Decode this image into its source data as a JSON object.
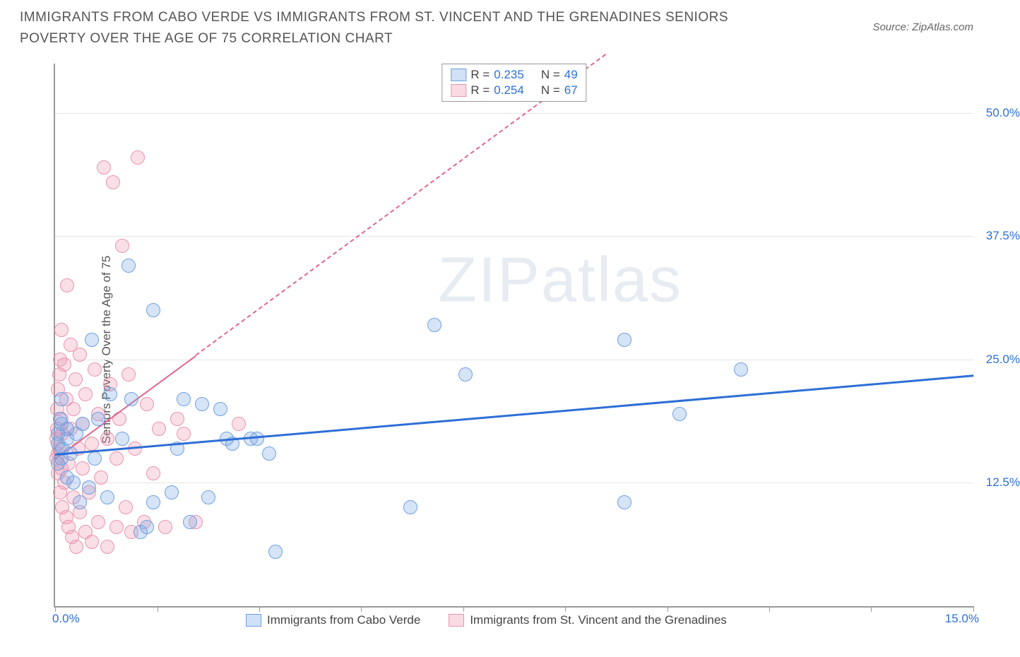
{
  "title": "IMMIGRANTS FROM CABO VERDE VS IMMIGRANTS FROM ST. VINCENT AND THE GRENADINES SENIORS POVERTY OVER THE AGE OF 75 CORRELATION CHART",
  "source": "Source: ZipAtlas.com",
  "ylabel": "Seniors Poverty Over the Age of 75",
  "watermark_a": "ZIP",
  "watermark_b": "atlas",
  "chart": {
    "type": "scatter",
    "background_color": "#ffffff",
    "grid_color": "#e5e5e5",
    "axis_color": "#999999",
    "tick_label_color": "#2e6fd6",
    "xlim": [
      0,
      15
    ],
    "ylim": [
      0,
      55
    ],
    "yticks": [
      12.5,
      25.0,
      37.5,
      50.0
    ],
    "ytick_labels": [
      "12.5%",
      "25.0%",
      "37.5%",
      "50.0%"
    ],
    "xticks": [
      0,
      1.67,
      3.33,
      5.0,
      6.67,
      8.33,
      10.0,
      11.67,
      13.33,
      15.0
    ],
    "x_left_label": "0.0%",
    "x_right_label": "15.0%",
    "legend_top": {
      "r_label": "R =",
      "n_label": "N =",
      "rows": [
        {
          "color_fill": "rgba(120,165,230,0.35)",
          "color_border": "#6fa0e0",
          "r": "0.235",
          "n": "49"
        },
        {
          "color_fill": "rgba(240,150,175,0.35)",
          "color_border": "#e895ad",
          "r": "0.254",
          "n": "67"
        }
      ]
    },
    "legend_bottom": [
      {
        "color_fill": "rgba(120,165,230,0.35)",
        "color_border": "#6fa0e0",
        "label": "Immigrants from Cabo Verde"
      },
      {
        "color_fill": "rgba(240,150,175,0.35)",
        "color_border": "#e895ad",
        "label": "Immigrants from St. Vincent and the Grenadines"
      }
    ],
    "series_blue": {
      "point_fill": "rgba(120,165,230,0.30)",
      "point_border": "#6fa0e0",
      "point_radius": 10,
      "trend_color": "#2e6fd6",
      "trend_width": 3,
      "trend_dash": "solid",
      "trend_start": {
        "x": 0.0,
        "y": 15.5
      },
      "trend_end": {
        "x": 15.0,
        "y": 23.5
      },
      "points": [
        {
          "x": 0.05,
          "y": 14.5
        },
        {
          "x": 0.05,
          "y": 16.5
        },
        {
          "x": 0.05,
          "y": 17.5
        },
        {
          "x": 0.08,
          "y": 19.0
        },
        {
          "x": 0.1,
          "y": 15.0
        },
        {
          "x": 0.1,
          "y": 18.5
        },
        {
          "x": 0.1,
          "y": 21.0
        },
        {
          "x": 0.12,
          "y": 16.0
        },
        {
          "x": 0.2,
          "y": 13.0
        },
        {
          "x": 0.2,
          "y": 17.0
        },
        {
          "x": 0.2,
          "y": 18.0
        },
        {
          "x": 0.25,
          "y": 15.5
        },
        {
          "x": 0.3,
          "y": 12.5
        },
        {
          "x": 0.35,
          "y": 17.5
        },
        {
          "x": 0.4,
          "y": 10.5
        },
        {
          "x": 0.45,
          "y": 18.5
        },
        {
          "x": 0.55,
          "y": 12.0
        },
        {
          "x": 0.6,
          "y": 27.0
        },
        {
          "x": 0.65,
          "y": 15.0
        },
        {
          "x": 0.7,
          "y": 19.0
        },
        {
          "x": 0.85,
          "y": 11.0
        },
        {
          "x": 0.9,
          "y": 21.5
        },
        {
          "x": 1.1,
          "y": 17.0
        },
        {
          "x": 1.2,
          "y": 34.5
        },
        {
          "x": 1.25,
          "y": 21.0
        },
        {
          "x": 1.4,
          "y": 7.5
        },
        {
          "x": 1.5,
          "y": 8.0
        },
        {
          "x": 1.6,
          "y": 30.0
        },
        {
          "x": 1.6,
          "y": 10.5
        },
        {
          "x": 1.9,
          "y": 11.5
        },
        {
          "x": 2.0,
          "y": 16.0
        },
        {
          "x": 2.1,
          "y": 21.0
        },
        {
          "x": 2.2,
          "y": 8.5
        },
        {
          "x": 2.4,
          "y": 20.5
        },
        {
          "x": 2.5,
          "y": 11.0
        },
        {
          "x": 2.7,
          "y": 20.0
        },
        {
          "x": 2.8,
          "y": 17.0
        },
        {
          "x": 2.9,
          "y": 16.5
        },
        {
          "x": 3.2,
          "y": 17.0
        },
        {
          "x": 3.3,
          "y": 17.0
        },
        {
          "x": 3.5,
          "y": 15.5
        },
        {
          "x": 3.6,
          "y": 5.5
        },
        {
          "x": 5.8,
          "y": 10.0
        },
        {
          "x": 6.2,
          "y": 28.5
        },
        {
          "x": 6.7,
          "y": 23.5
        },
        {
          "x": 9.3,
          "y": 10.5
        },
        {
          "x": 9.3,
          "y": 27.0
        },
        {
          "x": 10.2,
          "y": 19.5
        },
        {
          "x": 11.2,
          "y": 24.0
        }
      ]
    },
    "series_pink": {
      "point_fill": "rgba(240,150,175,0.30)",
      "point_border": "#e895ad",
      "point_radius": 10,
      "trend_color": "#e36690",
      "trend_width": 2,
      "trend_dash_solid_end_x": 2.3,
      "trend_start": {
        "x": 0.0,
        "y": 15.0
      },
      "trend_end": {
        "x": 9.0,
        "y": 56.0
      },
      "points": [
        {
          "x": 0.02,
          "y": 15.0
        },
        {
          "x": 0.02,
          "y": 17.0
        },
        {
          "x": 0.03,
          "y": 18.0
        },
        {
          "x": 0.03,
          "y": 20.0
        },
        {
          "x": 0.05,
          "y": 13.5
        },
        {
          "x": 0.05,
          "y": 15.5
        },
        {
          "x": 0.05,
          "y": 22.0
        },
        {
          "x": 0.07,
          "y": 16.0
        },
        {
          "x": 0.07,
          "y": 23.5
        },
        {
          "x": 0.08,
          "y": 11.5
        },
        {
          "x": 0.08,
          "y": 25.0
        },
        {
          "x": 0.1,
          "y": 14.0
        },
        {
          "x": 0.1,
          "y": 19.0
        },
        {
          "x": 0.1,
          "y": 28.0
        },
        {
          "x": 0.12,
          "y": 10.0
        },
        {
          "x": 0.12,
          "y": 17.5
        },
        {
          "x": 0.15,
          "y": 12.5
        },
        {
          "x": 0.15,
          "y": 24.5
        },
        {
          "x": 0.18,
          "y": 9.0
        },
        {
          "x": 0.18,
          "y": 21.0
        },
        {
          "x": 0.2,
          "y": 32.5
        },
        {
          "x": 0.22,
          "y": 8.0
        },
        {
          "x": 0.22,
          "y": 14.5
        },
        {
          "x": 0.25,
          "y": 18.0
        },
        {
          "x": 0.25,
          "y": 26.5
        },
        {
          "x": 0.28,
          "y": 7.0
        },
        {
          "x": 0.3,
          "y": 11.0
        },
        {
          "x": 0.3,
          "y": 20.0
        },
        {
          "x": 0.33,
          "y": 23.0
        },
        {
          "x": 0.35,
          "y": 6.0
        },
        {
          "x": 0.38,
          "y": 16.0
        },
        {
          "x": 0.4,
          "y": 9.5
        },
        {
          "x": 0.4,
          "y": 25.5
        },
        {
          "x": 0.45,
          "y": 14.0
        },
        {
          "x": 0.45,
          "y": 18.5
        },
        {
          "x": 0.5,
          "y": 7.5
        },
        {
          "x": 0.5,
          "y": 21.5
        },
        {
          "x": 0.55,
          "y": 11.5
        },
        {
          "x": 0.6,
          "y": 6.5
        },
        {
          "x": 0.6,
          "y": 16.5
        },
        {
          "x": 0.65,
          "y": 24.0
        },
        {
          "x": 0.7,
          "y": 8.5
        },
        {
          "x": 0.7,
          "y": 19.5
        },
        {
          "x": 0.75,
          "y": 13.0
        },
        {
          "x": 0.8,
          "y": 44.5
        },
        {
          "x": 0.85,
          "y": 6.0
        },
        {
          "x": 0.85,
          "y": 17.0
        },
        {
          "x": 0.9,
          "y": 22.5
        },
        {
          "x": 0.95,
          "y": 43.0
        },
        {
          "x": 1.0,
          "y": 8.0
        },
        {
          "x": 1.0,
          "y": 15.0
        },
        {
          "x": 1.05,
          "y": 19.0
        },
        {
          "x": 1.1,
          "y": 36.5
        },
        {
          "x": 1.15,
          "y": 10.0
        },
        {
          "x": 1.2,
          "y": 23.5
        },
        {
          "x": 1.25,
          "y": 7.5
        },
        {
          "x": 1.3,
          "y": 16.0
        },
        {
          "x": 1.35,
          "y": 45.5
        },
        {
          "x": 1.45,
          "y": 8.5
        },
        {
          "x": 1.5,
          "y": 20.5
        },
        {
          "x": 1.6,
          "y": 13.5
        },
        {
          "x": 1.7,
          "y": 18.0
        },
        {
          "x": 1.8,
          "y": 8.0
        },
        {
          "x": 2.0,
          "y": 19.0
        },
        {
          "x": 2.1,
          "y": 17.5
        },
        {
          "x": 2.3,
          "y": 8.5
        },
        {
          "x": 3.0,
          "y": 18.5
        }
      ]
    }
  }
}
